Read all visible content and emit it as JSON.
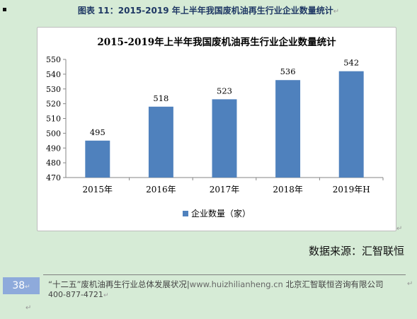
{
  "caption": {
    "prefix": "图表",
    "number": "11：",
    "text": "2015-2019 年上半年我国废机油再生行业企业数量统计",
    "mark": "↵"
  },
  "chart_data": {
    "type": "bar",
    "title": "2015-2019年上半年我国废机油再生行业企业数量统计",
    "categories": [
      "2015年",
      "2016年",
      "2017年",
      "2018年",
      "2019年H"
    ],
    "series": [
      {
        "name": "企业数量（家）",
        "values": [
          495,
          518,
          523,
          536,
          542
        ]
      }
    ],
    "ylim": [
      470,
      550
    ],
    "yticks": [
      470,
      480,
      490,
      500,
      510,
      520,
      530,
      540,
      550
    ],
    "xlabel": "",
    "ylabel": "",
    "grid": false,
    "legend": "bottom",
    "bar_color": "#4f81bd",
    "data_labels": true
  },
  "source": "数据来源：汇智联恒",
  "footer": {
    "page_number": "38",
    "page_mark": "↵",
    "title": "“十二五”废机油再生行业总体发展状况",
    "separator": "|",
    "url": "www.huizhilianheng.cn",
    "company": "北京汇智联恒咨询有限公司",
    "phone": "400-877-4721",
    "mark": "↵"
  },
  "marks": {
    "return": "↵"
  }
}
